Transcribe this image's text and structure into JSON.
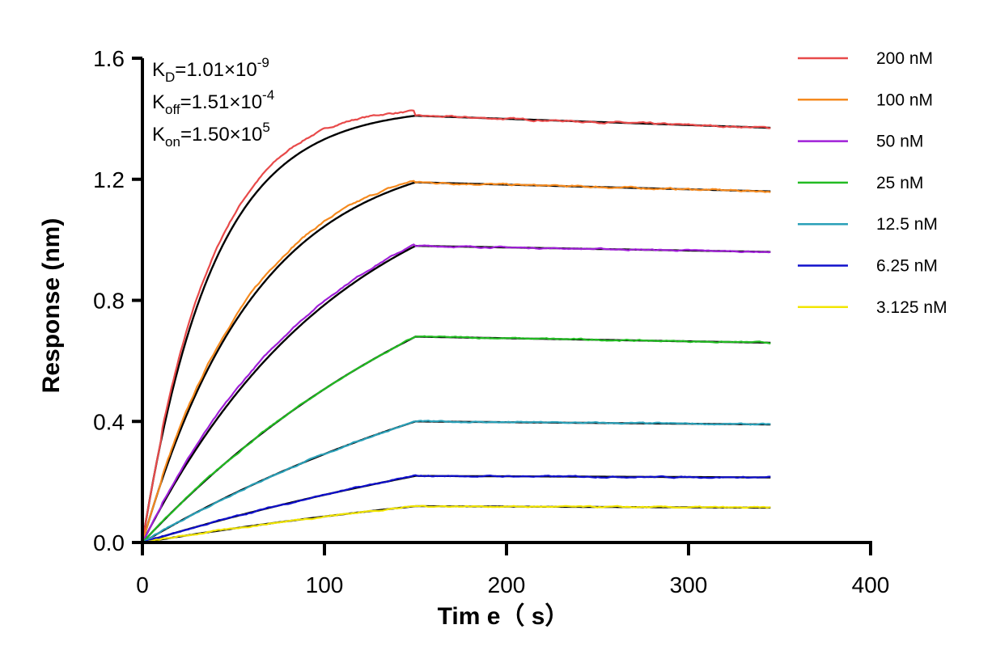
{
  "chart_data": {
    "type": "line",
    "xlabel": "Tim e（ s）",
    "ylabel": "Response (nm)",
    "xlim": [
      0,
      400
    ],
    "ylim": [
      0,
      1.6
    ],
    "xticks": [
      "0",
      "100",
      "200",
      "300",
      "400"
    ],
    "yticks": [
      "0.0",
      "0.4",
      "0.8",
      "1.2",
      "1.6"
    ],
    "grid": false,
    "legend_position": "right",
    "association_end_time": 150,
    "end_time": 345,
    "annotations": [
      {
        "base": "K",
        "sub": "D",
        "text": "=1.01×10",
        "sup": "-9"
      },
      {
        "base": "K",
        "sub": "off",
        "text": "=1.51×10",
        "sup": "-4"
      },
      {
        "base": "K",
        "sub": "on",
        "text": "=1.50×10",
        "sup": "5"
      }
    ],
    "fit_color": "#000000",
    "series": [
      {
        "name": "200 nM",
        "color": "#e84a4a",
        "plateau": 1.41,
        "end": 1.37,
        "k_obs": 0.026
      },
      {
        "name": "100 nM",
        "color": "#f58a1f",
        "plateau": 1.19,
        "end": 1.16,
        "k_obs": 0.016
      },
      {
        "name": "50 nM",
        "color": "#a020d8",
        "plateau": 0.98,
        "end": 0.96,
        "k_obs": 0.009
      },
      {
        "name": "25 nM",
        "color": "#22bb22",
        "plateau": 0.68,
        "end": 0.66,
        "k_obs": 0.005
      },
      {
        "name": "12.5 nM",
        "color": "#2aa0b8",
        "plateau": 0.4,
        "end": 0.39,
        "k_obs": 0.004
      },
      {
        "name": "6.25 nM",
        "color": "#1010cc",
        "plateau": 0.22,
        "end": 0.215,
        "k_obs": 0.003
      },
      {
        "name": "3.125 nM",
        "color": "#f2e600",
        "plateau": 0.12,
        "end": 0.115,
        "k_obs": 0.003
      }
    ]
  }
}
